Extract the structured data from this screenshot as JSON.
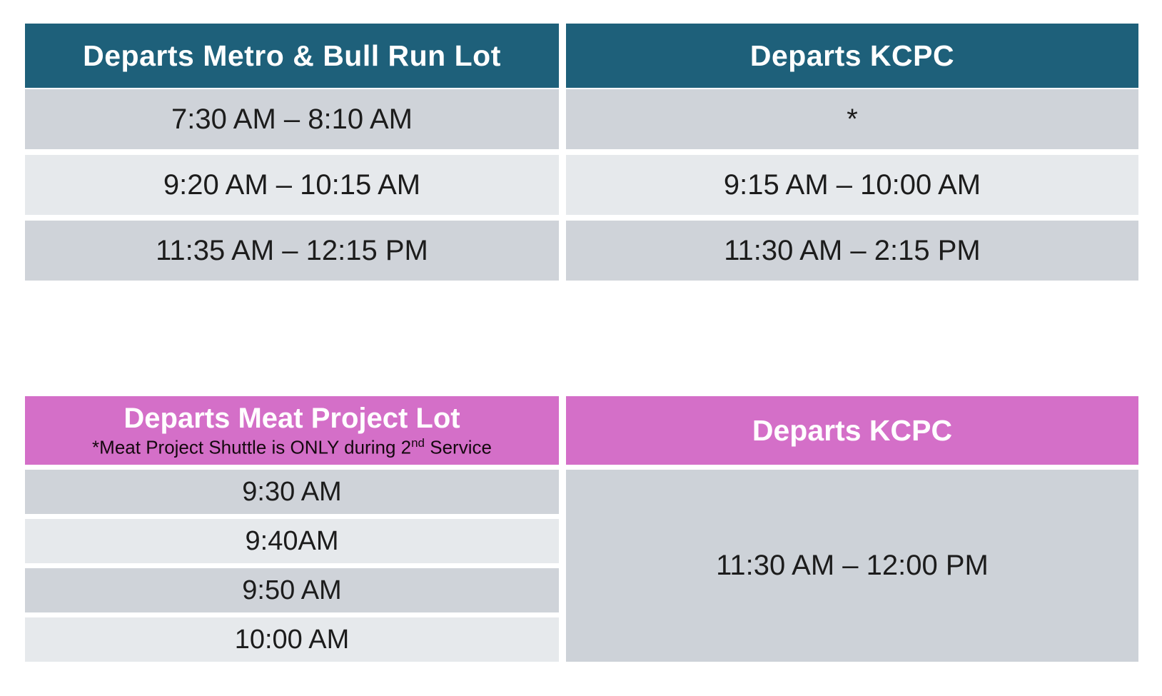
{
  "colors": {
    "metro_header_bg": "#1e607a",
    "meat_header_bg": "#d46fc8",
    "row_dark": "#cfd3d9",
    "row_light": "#e6e9ec",
    "merged_cell_bg": "#cdd2d8",
    "header_text": "#ffffff",
    "cell_text": "#1c1c1c"
  },
  "metro_table": {
    "headers": {
      "left": "Departs Metro & Bull Run Lot",
      "right": "Departs KCPC"
    },
    "rows": [
      {
        "left": "7:30 AM – 8:10 AM",
        "right": "*"
      },
      {
        "left": "9:20 AM – 10:15 AM",
        "right": "9:15 AM – 10:00 AM"
      },
      {
        "left": "11:35 AM – 12:15 PM",
        "right": "11:30 AM – 2:15 PM"
      }
    ]
  },
  "meat_table": {
    "headers": {
      "left_title": "Departs Meat Project Lot",
      "left_note_prefix": "*Meat Project Shuttle is ONLY during 2",
      "left_note_sup": "nd",
      "left_note_suffix": " Service",
      "right": "Departs KCPC"
    },
    "left_rows": [
      "9:30 AM",
      "9:40AM",
      "9:50 AM",
      "10:00 AM"
    ],
    "right_merged": "11:30 AM – 12:00 PM"
  }
}
